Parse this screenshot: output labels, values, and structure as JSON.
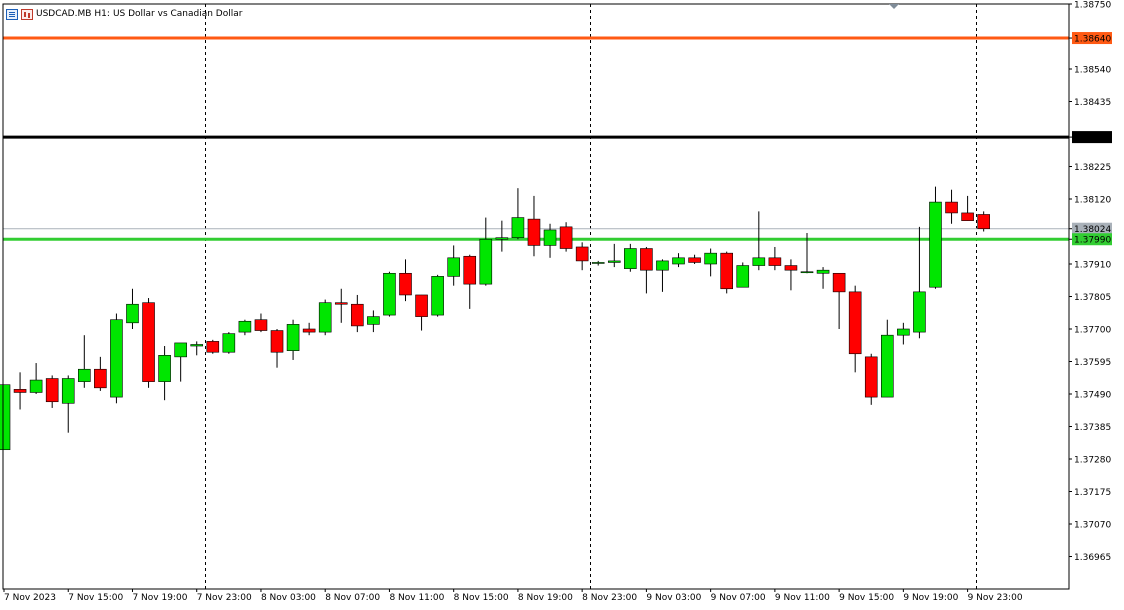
{
  "header": {
    "symbol": "USDCAD.MB",
    "timeframe": "H1:",
    "description": "US Dollar vs Canadian Dollar"
  },
  "colors": {
    "bull": "#00e600",
    "bear": "#ff0000",
    "wick": "#000000",
    "background": "#ffffff",
    "resistance_line": "#ff5a14",
    "pivot_line": "#000000",
    "support_line": "#32cd32",
    "bid_line": "#a9b1b9"
  },
  "chart_data": {
    "type": "candlestick",
    "title": "",
    "xlabel": "",
    "ylabel": "",
    "ylim": [
      1.3686,
      1.3875
    ],
    "y_ticks": [
      "1.38750",
      "1.38640",
      "1.38540",
      "1.38435",
      "1.38320",
      "1.38225",
      "1.38120",
      "1.38024",
      "1.37990",
      "1.37910",
      "1.37805",
      "1.37700",
      "1.37595",
      "1.37490",
      "1.37385",
      "1.37280",
      "1.37175",
      "1.37070",
      "1.36965"
    ],
    "x_ticks": [
      {
        "i": 0,
        "label": "7 Nov 2023"
      },
      {
        "i": 4,
        "label": "7 Nov 15:00"
      },
      {
        "i": 8,
        "label": "7 Nov 19:00"
      },
      {
        "i": 12,
        "label": "7 Nov 23:00"
      },
      {
        "i": 16,
        "label": "8 Nov 03:00"
      },
      {
        "i": 20,
        "label": "8 Nov 07:00"
      },
      {
        "i": 24,
        "label": "8 Nov 11:00"
      },
      {
        "i": 28,
        "label": "8 Nov 15:00"
      },
      {
        "i": 32,
        "label": "8 Nov 19:00"
      },
      {
        "i": 36,
        "label": "8 Nov 23:00"
      },
      {
        "i": 40,
        "label": "9 Nov 03:00"
      },
      {
        "i": 44,
        "label": "9 Nov 07:00"
      },
      {
        "i": 48,
        "label": "9 Nov 11:00"
      },
      {
        "i": 52,
        "label": "9 Nov 15:00"
      },
      {
        "i": 56,
        "label": "9 Nov 19:00"
      },
      {
        "i": 60,
        "label": "9 Nov 23:00"
      }
    ],
    "day_separators": [
      13,
      37,
      61
    ],
    "grid": false,
    "horizontal_lines": [
      {
        "name": "resistance",
        "price": 1.3864,
        "label": "1.38640",
        "color": "#ff5a14"
      },
      {
        "name": "pivot",
        "price": 1.3832,
        "label": "1.38320",
        "color": "#000000"
      },
      {
        "name": "support",
        "price": 1.3799,
        "label": "1.37990",
        "color": "#32cd32"
      },
      {
        "name": "bid",
        "price": 1.38024,
        "label": "1.38024",
        "color": "#a9b1b9"
      }
    ],
    "candles": [
      {
        "o": 1.3731,
        "h": 1.3752,
        "l": 1.3731,
        "c": 1.3752
      },
      {
        "o": 1.37505,
        "h": 1.3756,
        "l": 1.3744,
        "c": 1.37495
      },
      {
        "o": 1.37495,
        "h": 1.3759,
        "l": 1.3749,
        "c": 1.37535
      },
      {
        "o": 1.3754,
        "h": 1.3755,
        "l": 1.37445,
        "c": 1.37465
      },
      {
        "o": 1.3746,
        "h": 1.3755,
        "l": 1.37365,
        "c": 1.3754
      },
      {
        "o": 1.3753,
        "h": 1.3768,
        "l": 1.3751,
        "c": 1.3757
      },
      {
        "o": 1.3757,
        "h": 1.3761,
        "l": 1.375,
        "c": 1.3751
      },
      {
        "o": 1.3748,
        "h": 1.3775,
        "l": 1.3746,
        "c": 1.3773
      },
      {
        "o": 1.3772,
        "h": 1.3783,
        "l": 1.377,
        "c": 1.3778
      },
      {
        "o": 1.37785,
        "h": 1.378,
        "l": 1.3751,
        "c": 1.3753
      },
      {
        "o": 1.3753,
        "h": 1.37645,
        "l": 1.3747,
        "c": 1.37615
      },
      {
        "o": 1.3761,
        "h": 1.3765,
        "l": 1.3753,
        "c": 1.37655
      },
      {
        "o": 1.37645,
        "h": 1.3766,
        "l": 1.37615,
        "c": 1.3765
      },
      {
        "o": 1.3766,
        "h": 1.37665,
        "l": 1.3762,
        "c": 1.37625
      },
      {
        "o": 1.37625,
        "h": 1.3769,
        "l": 1.3762,
        "c": 1.37685
      },
      {
        "o": 1.3769,
        "h": 1.3773,
        "l": 1.3768,
        "c": 1.37725
      },
      {
        "o": 1.3773,
        "h": 1.3775,
        "l": 1.3769,
        "c": 1.37695
      },
      {
        "o": 1.37695,
        "h": 1.377,
        "l": 1.37575,
        "c": 1.37625
      },
      {
        "o": 1.3763,
        "h": 1.3773,
        "l": 1.376,
        "c": 1.37715
      },
      {
        "o": 1.377,
        "h": 1.3772,
        "l": 1.3768,
        "c": 1.3769
      },
      {
        "o": 1.3769,
        "h": 1.37795,
        "l": 1.3768,
        "c": 1.37785
      },
      {
        "o": 1.37785,
        "h": 1.3783,
        "l": 1.3772,
        "c": 1.3778
      },
      {
        "o": 1.3778,
        "h": 1.3781,
        "l": 1.3769,
        "c": 1.3771
      },
      {
        "o": 1.37715,
        "h": 1.3776,
        "l": 1.3769,
        "c": 1.3774
      },
      {
        "o": 1.37745,
        "h": 1.37885,
        "l": 1.3774,
        "c": 1.3788
      },
      {
        "o": 1.3788,
        "h": 1.37925,
        "l": 1.3779,
        "c": 1.3781
      },
      {
        "o": 1.3781,
        "h": 1.3781,
        "l": 1.37695,
        "c": 1.3774
      },
      {
        "o": 1.37745,
        "h": 1.37875,
        "l": 1.3774,
        "c": 1.3787
      },
      {
        "o": 1.3787,
        "h": 1.3797,
        "l": 1.3784,
        "c": 1.3793
      },
      {
        "o": 1.37935,
        "h": 1.3794,
        "l": 1.37765,
        "c": 1.37845
      },
      {
        "o": 1.37845,
        "h": 1.3806,
        "l": 1.3784,
        "c": 1.3799
      },
      {
        "o": 1.3799,
        "h": 1.3805,
        "l": 1.3795,
        "c": 1.37995
      },
      {
        "o": 1.37995,
        "h": 1.38155,
        "l": 1.3799,
        "c": 1.3806
      },
      {
        "o": 1.38055,
        "h": 1.3813,
        "l": 1.37935,
        "c": 1.3797
      },
      {
        "o": 1.3797,
        "h": 1.3804,
        "l": 1.3793,
        "c": 1.3802
      },
      {
        "o": 1.3803,
        "h": 1.38045,
        "l": 1.3795,
        "c": 1.3796
      },
      {
        "o": 1.37965,
        "h": 1.3798,
        "l": 1.3789,
        "c": 1.3792
      },
      {
        "o": 1.37915,
        "h": 1.3792,
        "l": 1.37905,
        "c": 1.37915
      },
      {
        "o": 1.37915,
        "h": 1.37975,
        "l": 1.379,
        "c": 1.3792
      },
      {
        "o": 1.37895,
        "h": 1.37975,
        "l": 1.37885,
        "c": 1.3796
      },
      {
        "o": 1.3796,
        "h": 1.37965,
        "l": 1.37815,
        "c": 1.3789
      },
      {
        "o": 1.3789,
        "h": 1.37925,
        "l": 1.3782,
        "c": 1.3792
      },
      {
        "o": 1.3791,
        "h": 1.37945,
        "l": 1.379,
        "c": 1.3793
      },
      {
        "o": 1.3793,
        "h": 1.3794,
        "l": 1.3791,
        "c": 1.37915
      },
      {
        "o": 1.3791,
        "h": 1.3796,
        "l": 1.3787,
        "c": 1.37945
      },
      {
        "o": 1.37945,
        "h": 1.3795,
        "l": 1.37815,
        "c": 1.3783
      },
      {
        "o": 1.37835,
        "h": 1.37915,
        "l": 1.37835,
        "c": 1.37905
      },
      {
        "o": 1.37905,
        "h": 1.3808,
        "l": 1.3789,
        "c": 1.3793
      },
      {
        "o": 1.3793,
        "h": 1.37965,
        "l": 1.3789,
        "c": 1.37905
      },
      {
        "o": 1.37905,
        "h": 1.37925,
        "l": 1.37825,
        "c": 1.3789
      },
      {
        "o": 1.37885,
        "h": 1.3801,
        "l": 1.3788,
        "c": 1.37885
      },
      {
        "o": 1.3788,
        "h": 1.379,
        "l": 1.3783,
        "c": 1.3789
      },
      {
        "o": 1.3788,
        "h": 1.37875,
        "l": 1.377,
        "c": 1.3782
      },
      {
        "o": 1.3782,
        "h": 1.3784,
        "l": 1.3756,
        "c": 1.3762
      },
      {
        "o": 1.3761,
        "h": 1.3762,
        "l": 1.37455,
        "c": 1.3748
      },
      {
        "o": 1.3748,
        "h": 1.3773,
        "l": 1.3748,
        "c": 1.3768
      },
      {
        "o": 1.3768,
        "h": 1.3772,
        "l": 1.3765,
        "c": 1.377
      },
      {
        "o": 1.3769,
        "h": 1.3803,
        "l": 1.3767,
        "c": 1.3782
      },
      {
        "o": 1.37835,
        "h": 1.3816,
        "l": 1.3783,
        "c": 1.3811
      },
      {
        "o": 1.3811,
        "h": 1.3815,
        "l": 1.3804,
        "c": 1.38075
      },
      {
        "o": 1.38075,
        "h": 1.3813,
        "l": 1.3805,
        "c": 1.3805
      },
      {
        "o": 1.3807,
        "h": 1.3808,
        "l": 1.38015,
        "c": 1.38024
      }
    ]
  }
}
